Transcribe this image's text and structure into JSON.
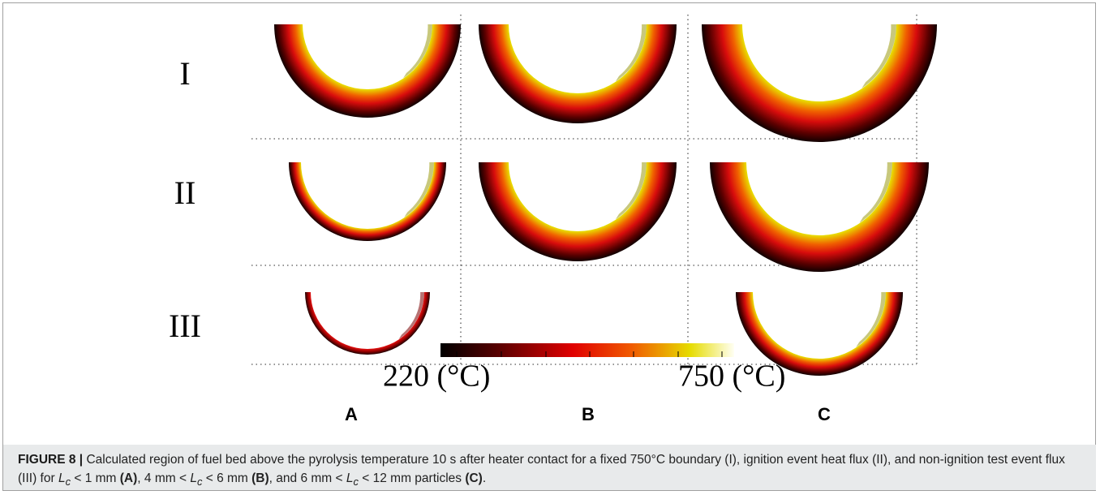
{
  "figure": {
    "rows": [
      "I",
      "II",
      "III"
    ],
    "columns": [
      "A",
      "B",
      "C"
    ],
    "colorbar": {
      "min_label": "220 (°C)",
      "max_label": "750 (°C)"
    },
    "caption": {
      "runs": [
        "FIGURE 8 |",
        " Calculated region of fuel bed above the pyrolysis temperature 10 s after heater contact for a fixed 750°C boundary (I), ignition event heat flux (II), and non-ignition test event flux (III) for ",
        "L",
        "c",
        " < 1 mm ",
        "(A)",
        ", 4 mm < ",
        "L",
        "c",
        " < 6 mm ",
        "(B)",
        ", and 6 mm < ",
        "L",
        "c",
        " < 12 mm particles ",
        "(C)",
        "."
      ]
    }
  }
}
